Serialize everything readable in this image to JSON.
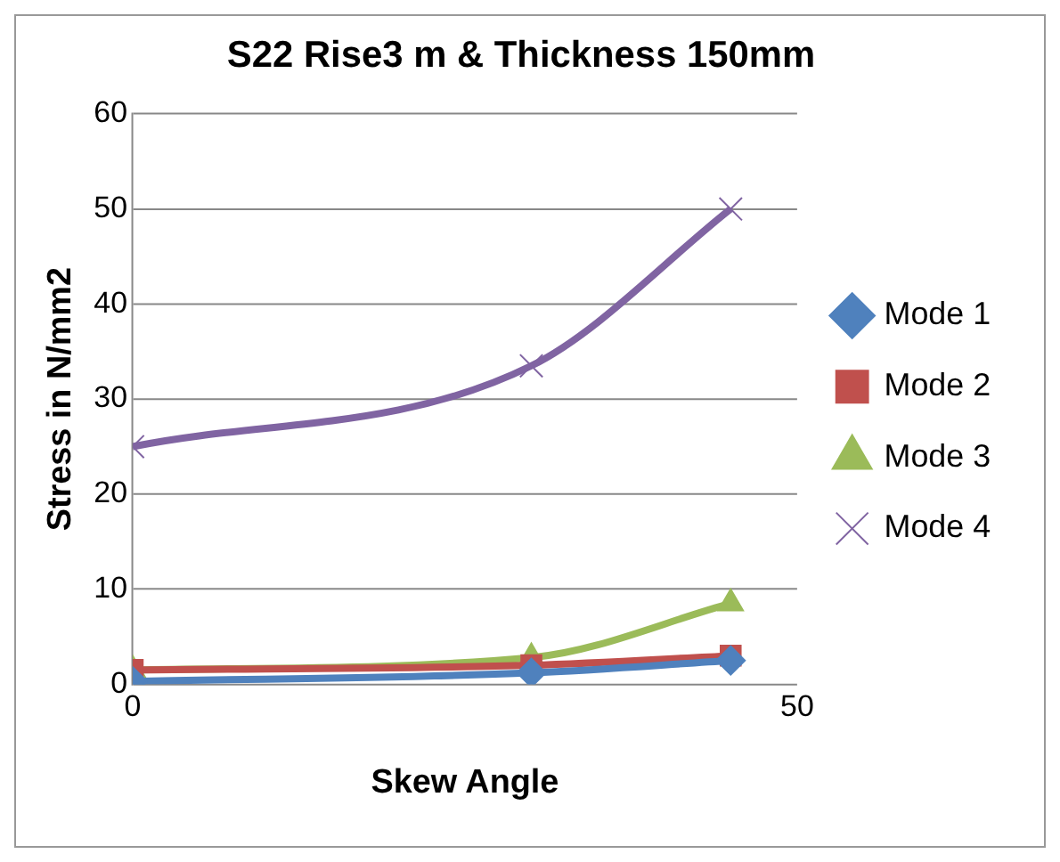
{
  "chart_data": {
    "type": "line",
    "title": "S22 Rise3 m & Thickness 150mm",
    "xlabel": "Skew Angle",
    "ylabel": "Stress in N/mm2",
    "x": [
      0,
      30,
      45
    ],
    "series": [
      {
        "name": "Mode 1",
        "color": "#4f81bd",
        "marker": "diamond",
        "values": [
          0.3,
          1.2,
          2.5
        ]
      },
      {
        "name": "Mode 2",
        "color": "#c0504d",
        "marker": "square",
        "values": [
          1.5,
          2,
          3
        ]
      },
      {
        "name": "Mode 3",
        "color": "#9bbb59",
        "marker": "triangle",
        "values": [
          1.5,
          2.8,
          8.5
        ]
      },
      {
        "name": "Mode 4",
        "color": "#8064a2",
        "marker": "cross",
        "values": [
          25,
          33.5,
          50
        ]
      }
    ],
    "xlim": [
      0,
      50
    ],
    "xticks": [
      0,
      50
    ],
    "ylim": [
      0,
      60
    ],
    "yticks": [
      0,
      10,
      20,
      30,
      40,
      50,
      60
    ],
    "grid": "y",
    "legend": "right"
  }
}
